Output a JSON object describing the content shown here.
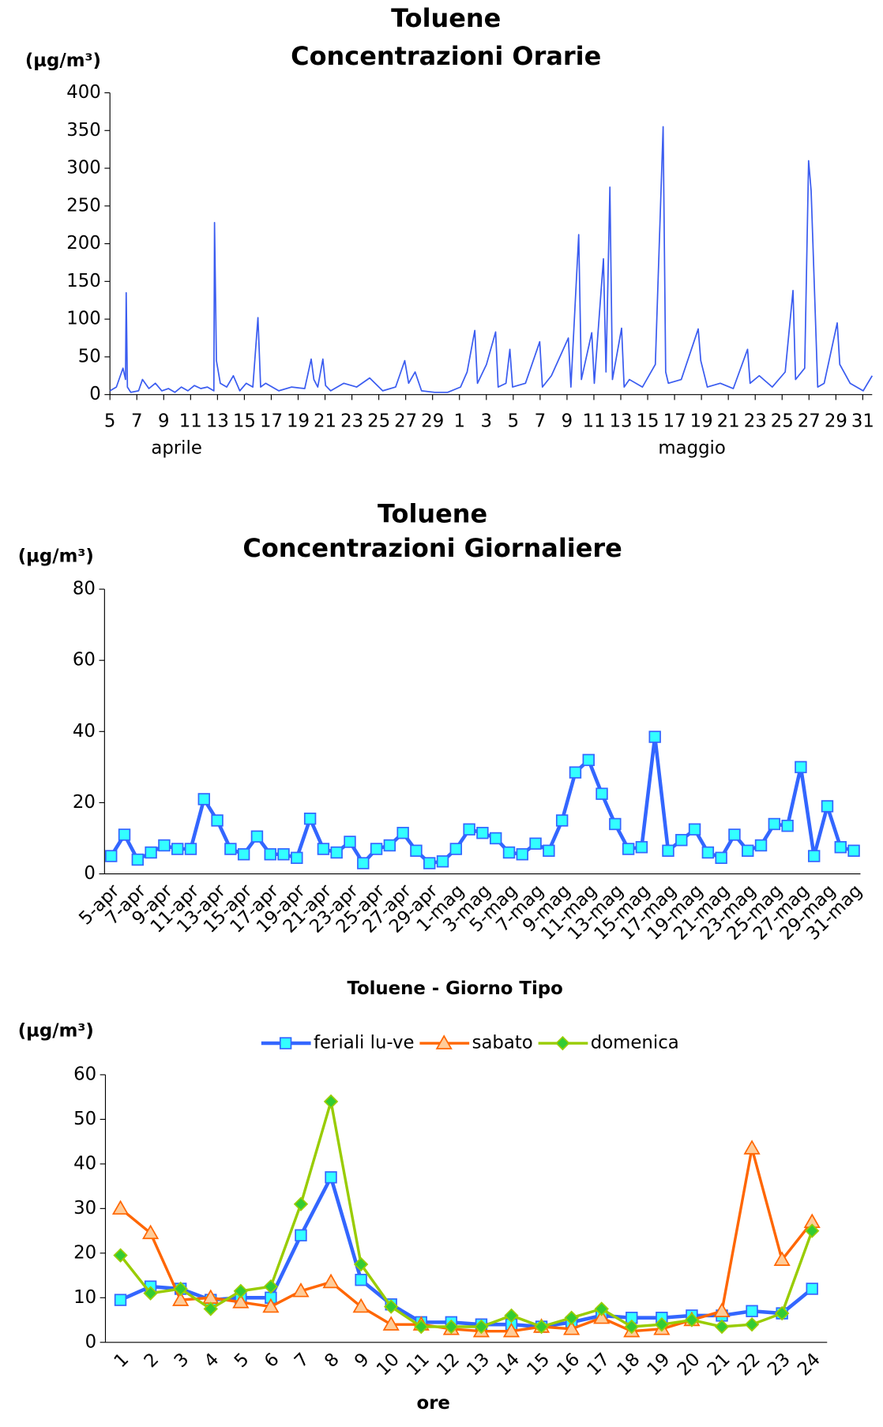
{
  "chart_data": [
    {
      "type": "line",
      "title": [
        "Toluene",
        "Concentrazioni Orarie"
      ],
      "ylabel": "(µg/m³)",
      "xgroups": [
        "aprile",
        "maggio"
      ],
      "xlim": [
        0,
        56.7
      ],
      "xticks": [
        {
          "value": 0,
          "label": "5"
        },
        {
          "value": 2,
          "label": "7"
        },
        {
          "value": 4,
          "label": "9"
        },
        {
          "value": 6,
          "label": "11"
        },
        {
          "value": 8,
          "label": "13"
        },
        {
          "value": 10,
          "label": "15"
        },
        {
          "value": 12,
          "label": "17"
        },
        {
          "value": 14,
          "label": "19"
        },
        {
          "value": 16,
          "label": "21"
        },
        {
          "value": 18,
          "label": "23"
        },
        {
          "value": 20,
          "label": "25"
        },
        {
          "value": 22,
          "label": "27"
        },
        {
          "value": 24,
          "label": "29"
        },
        {
          "value": 26,
          "label": "1"
        },
        {
          "value": 28,
          "label": "3"
        },
        {
          "value": 30,
          "label": "5"
        },
        {
          "value": 32,
          "label": "7"
        },
        {
          "value": 34,
          "label": "9"
        },
        {
          "value": 36,
          "label": "11"
        },
        {
          "value": 38,
          "label": "13"
        },
        {
          "value": 40,
          "label": "15"
        },
        {
          "value": 42,
          "label": "17"
        },
        {
          "value": 44,
          "label": "19"
        },
        {
          "value": 46,
          "label": "21"
        },
        {
          "value": 48,
          "label": "23"
        },
        {
          "value": 50,
          "label": "25"
        },
        {
          "value": 52,
          "label": "27"
        },
        {
          "value": 54,
          "label": "29"
        },
        {
          "value": 56,
          "label": "31"
        }
      ],
      "ylim": [
        0,
        400
      ],
      "yticks": [
        0,
        50,
        100,
        150,
        200,
        250,
        300,
        350,
        400
      ],
      "x": [
        0,
        0.48,
        0.97,
        1.16,
        1.21,
        1.3,
        1.55,
        2.13,
        2.42,
        2.9,
        3.38,
        3.86,
        4.35,
        4.83,
        5.31,
        5.8,
        6.28,
        6.76,
        7.25,
        7.73,
        7.78,
        7.92,
        8.21,
        8.69,
        9.18,
        9.66,
        10.14,
        10.63,
        11.01,
        11.21,
        11.59,
        12.56,
        13.52,
        14.49,
        14.97,
        15.17,
        15.46,
        15.84,
        16.04,
        16.42,
        17.39,
        18.35,
        19.32,
        20.29,
        21.25,
        21.93,
        22.22,
        22.7,
        23.18,
        24.15,
        25.12,
        26.08,
        26.57,
        27.14,
        27.34,
        28.01,
        28.69,
        28.88,
        29.46,
        29.75,
        29.95,
        30.91,
        31.97,
        32.17,
        32.84,
        34.1,
        34.29,
        34.87,
        35.07,
        35.84,
        36.03,
        36.71,
        36.9,
        37.19,
        37.38,
        38.06,
        38.25,
        38.64,
        39.61,
        40.57,
        41.15,
        41.34,
        41.54,
        42.5,
        43.76,
        43.95,
        44.44,
        45.4,
        46.37,
        47.43,
        47.62,
        48.3,
        49.27,
        50.23,
        50.81,
        51.0,
        51.68,
        51.97,
        52.16,
        52.65,
        53.13,
        54.1,
        54.29,
        55.06,
        56.03,
        56.7
      ],
      "series": [
        {
          "color": "#3a5cf0",
          "width": 1.5,
          "values": [
            5,
            10,
            35,
            20,
            135,
            10,
            3,
            5,
            20,
            8,
            15,
            5,
            8,
            3,
            10,
            5,
            12,
            8,
            10,
            5,
            228,
            45,
            15,
            10,
            25,
            5,
            15,
            10,
            102,
            10,
            15,
            5,
            10,
            8,
            47,
            20,
            10,
            47,
            12,
            5,
            15,
            10,
            22,
            5,
            10,
            45,
            15,
            30,
            5,
            3,
            3,
            10,
            30,
            85,
            15,
            40,
            83,
            10,
            15,
            60,
            10,
            15,
            70,
            10,
            25,
            75,
            10,
            212,
            20,
            82,
            15,
            180,
            30,
            275,
            20,
            88,
            10,
            20,
            10,
            40,
            355,
            30,
            15,
            20,
            87,
            45,
            10,
            15,
            8,
            60,
            15,
            25,
            10,
            30,
            138,
            20,
            35,
            310,
            270,
            10,
            15,
            95,
            40,
            15,
            5,
            25
          ]
        }
      ]
    },
    {
      "type": "line",
      "title": [
        "Toluene",
        "Concentrazioni Giornaliere"
      ],
      "ylabel": "(µg/m³)",
      "categories": [
        "5-apr",
        null,
        "7-apr",
        null,
        "9-apr",
        null,
        "11-apr",
        null,
        "13-apr",
        null,
        "15-apr",
        null,
        "17-apr",
        null,
        "19-apr",
        null,
        "21-apr",
        null,
        "23-apr",
        null,
        "25-apr",
        null,
        "27-apr",
        null,
        "29-apr",
        null,
        "1-mag",
        null,
        "3-mag",
        null,
        "5-mag",
        null,
        "7-mag",
        null,
        "9-mag",
        null,
        "11-mag",
        null,
        "13-mag",
        null,
        "15-mag",
        null,
        "17-mag",
        null,
        "19-mag",
        null,
        "21-mag",
        null,
        "23-mag",
        null,
        "25-mag",
        null,
        "27-mag",
        null,
        "29-mag",
        null,
        "31-mag"
      ],
      "ylim": [
        0,
        80
      ],
      "yticks": [
        0,
        20,
        40,
        60,
        80
      ],
      "series": [
        {
          "color": "#3366ff",
          "width": 4,
          "marker": "square",
          "marker_fill": "#33ffff",
          "values": [
            5,
            11,
            4,
            6,
            8,
            7,
            7,
            21,
            15,
            7,
            5.5,
            10.5,
            5.5,
            5.5,
            4.5,
            15.5,
            7,
            6,
            9,
            3,
            7,
            8,
            11.5,
            6.5,
            3,
            3.5,
            7,
            12.5,
            11.5,
            10,
            6,
            5.5,
            8.5,
            6.5,
            15,
            28.5,
            32,
            22.5,
            14,
            7,
            7.5,
            38.5,
            6.5,
            9.5,
            12.5,
            6,
            4.5,
            11,
            6.5,
            8,
            14,
            13.5,
            30,
            5,
            19,
            7.5,
            6.5
          ]
        }
      ]
    },
    {
      "type": "line",
      "title": [
        "Toluene - Giorno Tipo"
      ],
      "ylabel": "(µg/m³)",
      "xlabel": "ore",
      "legend": "top",
      "categories": [
        "1",
        "2",
        "3",
        "4",
        "5",
        "6",
        "7",
        "8",
        "9",
        "10",
        "11",
        "12",
        "13",
        "14",
        "15",
        "16",
        "17",
        "18",
        "19",
        "20",
        "21",
        "22",
        "23",
        "24"
      ],
      "ylim": [
        0,
        60
      ],
      "yticks": [
        0,
        10,
        20,
        30,
        40,
        50,
        60
      ],
      "series": [
        {
          "name": "feriali lu-ve",
          "color": "#3366ff",
          "width": 4,
          "marker": "square",
          "marker_fill": "#33ffff",
          "values": [
            9.5,
            12.5,
            12,
            9.5,
            10,
            10,
            24,
            37,
            14,
            8.5,
            4.5,
            4.5,
            4,
            4,
            3.5,
            4.5,
            6,
            5.5,
            5.5,
            6,
            6,
            7,
            6.5,
            12
          ]
        },
        {
          "name": "sabato",
          "color": "#ff6600",
          "width": 3,
          "marker": "triangle",
          "marker_fill": "#ffcc99",
          "values": [
            30,
            24.5,
            9.5,
            10,
            9,
            8,
            11.5,
            13.5,
            8,
            4,
            4,
            3,
            2.5,
            2.5,
            3.5,
            3,
            5.5,
            2.5,
            3,
            5,
            7,
            43.5,
            18.5,
            27
          ]
        },
        {
          "name": "domenica",
          "color": "#99cc00",
          "width": 3,
          "marker": "diamond",
          "marker_fill": "#33cc33",
          "values": [
            19.5,
            11,
            12,
            7.5,
            11.5,
            12.5,
            31,
            54,
            17.5,
            8,
            3.5,
            3.5,
            3.5,
            6,
            3.5,
            5.5,
            7.5,
            3.5,
            4,
            5,
            3.5,
            4,
            6.5,
            25
          ]
        }
      ]
    }
  ]
}
